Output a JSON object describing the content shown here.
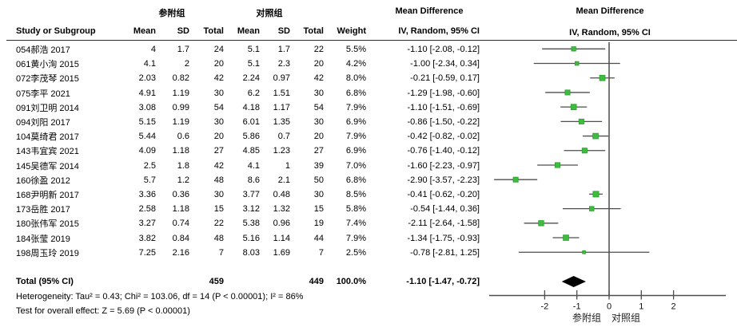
{
  "header": {
    "group1": "参附组",
    "group2": "对照组",
    "md_title_left": "Mean Difference",
    "md_title_right": "Mean Difference",
    "col_study": "Study or Subgroup",
    "col_mean1": "Mean",
    "col_sd1": "SD",
    "col_total1": "Total",
    "col_mean2": "Mean",
    "col_sd2": "SD",
    "col_total2": "Total",
    "col_weight": "Weight",
    "col_ci": "IV, Random, 95% CI",
    "col_ci_right": "IV, Random, 95% CI"
  },
  "rows": [
    {
      "study": "054郝浩 2017",
      "mean1": "4",
      "sd1": "1.7",
      "total1": "24",
      "mean2": "5.1",
      "sd2": "1.7",
      "total2": "22",
      "weight": "5.5%",
      "ci": "-1.10 [-2.08, -0.12]"
    },
    {
      "study": "061黄小洵 2015",
      "mean1": "4.1",
      "sd1": "2",
      "total1": "20",
      "mean2": "5.1",
      "sd2": "2.3",
      "total2": "20",
      "weight": "4.2%",
      "ci": "-1.00 [-2.34, 0.34]"
    },
    {
      "study": "072李茂琴 2015",
      "mean1": "2.03",
      "sd1": "0.82",
      "total1": "42",
      "mean2": "2.24",
      "sd2": "0.97",
      "total2": "42",
      "weight": "8.0%",
      "ci": "-0.21 [-0.59, 0.17]"
    },
    {
      "study": "075李平 2021",
      "mean1": "4.91",
      "sd1": "1.19",
      "total1": "30",
      "mean2": "6.2",
      "sd2": "1.51",
      "total2": "30",
      "weight": "6.8%",
      "ci": "-1.29 [-1.98, -0.60]"
    },
    {
      "study": "091刘卫明 2014",
      "mean1": "3.08",
      "sd1": "0.99",
      "total1": "54",
      "mean2": "4.18",
      "sd2": "1.17",
      "total2": "54",
      "weight": "7.9%",
      "ci": "-1.10 [-1.51, -0.69]"
    },
    {
      "study": "094刘阳 2017",
      "mean1": "5.15",
      "sd1": "1.19",
      "total1": "30",
      "mean2": "6.01",
      "sd2": "1.35",
      "total2": "30",
      "weight": "6.9%",
      "ci": "-0.86 [-1.50, -0.22]"
    },
    {
      "study": "104莫绮君 2017",
      "mean1": "5.44",
      "sd1": "0.6",
      "total1": "20",
      "mean2": "5.86",
      "sd2": "0.7",
      "total2": "20",
      "weight": "7.9%",
      "ci": "-0.42 [-0.82, -0.02]"
    },
    {
      "study": "143韦宜宾 2021",
      "mean1": "4.09",
      "sd1": "1.18",
      "total1": "27",
      "mean2": "4.85",
      "sd2": "1.23",
      "total2": "27",
      "weight": "6.9%",
      "ci": "-0.76 [-1.40, -0.12]"
    },
    {
      "study": "145吴德军 2014",
      "mean1": "2.5",
      "sd1": "1.8",
      "total1": "42",
      "mean2": "4.1",
      "sd2": "1",
      "total2": "39",
      "weight": "7.0%",
      "ci": "-1.60 [-2.23, -0.97]"
    },
    {
      "study": "160徐盈 2012",
      "mean1": "5.7",
      "sd1": "1.2",
      "total1": "48",
      "mean2": "8.6",
      "sd2": "2.1",
      "total2": "50",
      "weight": "6.8%",
      "ci": "-2.90 [-3.57, -2.23]"
    },
    {
      "study": "168尹明新 2017",
      "mean1": "3.36",
      "sd1": "0.36",
      "total1": "30",
      "mean2": "3.77",
      "sd2": "0.48",
      "total2": "30",
      "weight": "8.5%",
      "ci": "-0.41 [-0.62, -0.20]"
    },
    {
      "study": "173岳胜 2017",
      "mean1": "2.58",
      "sd1": "1.18",
      "total1": "15",
      "mean2": "3.12",
      "sd2": "1.32",
      "total2": "15",
      "weight": "5.8%",
      "ci": "-0.54 [-1.44, 0.36]"
    },
    {
      "study": "180张伟军 2015",
      "mean1": "3.27",
      "sd1": "0.74",
      "total1": "22",
      "mean2": "5.38",
      "sd2": "0.96",
      "total2": "19",
      "weight": "7.4%",
      "ci": "-2.11 [-2.64, -1.58]"
    },
    {
      "study": "184张莹 2019",
      "mean1": "3.82",
      "sd1": "0.84",
      "total1": "48",
      "mean2": "5.16",
      "sd2": "1.14",
      "total2": "44",
      "weight": "7.9%",
      "ci": "-1.34 [-1.75, -0.93]"
    },
    {
      "study": "198周玉玲 2019",
      "mean1": "7.25",
      "sd1": "2.16",
      "total1": "7",
      "mean2": "8.03",
      "sd2": "1.69",
      "total2": "7",
      "weight": "2.5%",
      "ci": "-0.78 [-2.81, 1.25]"
    }
  ],
  "footer": {
    "total_label": "Total (95% CI)",
    "total1": "459",
    "total2": "449",
    "total_weight": "100.0%",
    "total_ci": "-1.10 [-1.47, -0.72]",
    "heterogeneity": "Heterogeneity: Tau² = 0.43; Chi² = 103.06, df = 14 (P < 0.00001); I² = 86%",
    "overall_effect": "Test for overall effect: Z = 5.69 (P < 0.00001)"
  },
  "chart_data": {
    "type": "forest",
    "title": "Mean Difference",
    "subtitle": "IV, Random, 95% CI",
    "effect_measure": "Mean Difference IV, Random, 95% CI",
    "x_ticks": [
      -2,
      -1,
      0,
      1,
      2
    ],
    "xlim": [
      -3.8,
      3.7
    ],
    "zero_line": 0,
    "axis_group_labels": {
      "left": "参附组",
      "right": "对照组"
    },
    "marker_color": "#3fbb3f",
    "marker_edge_color": "#2d9e2d",
    "line_color": "#4d4d4d",
    "diamond_color": "#000000",
    "studies": [
      {
        "label": "054郝浩 2017",
        "md": -1.1,
        "lo": -2.08,
        "hi": -0.12,
        "weight_pct": 5.5
      },
      {
        "label": "061黄小洵 2015",
        "md": -1.0,
        "lo": -2.34,
        "hi": 0.34,
        "weight_pct": 4.2
      },
      {
        "label": "072李茂琴 2015",
        "md": -0.21,
        "lo": -0.59,
        "hi": 0.17,
        "weight_pct": 8.0
      },
      {
        "label": "075李平 2021",
        "md": -1.29,
        "lo": -1.98,
        "hi": -0.6,
        "weight_pct": 6.8
      },
      {
        "label": "091刘卫明 2014",
        "md": -1.1,
        "lo": -1.51,
        "hi": -0.69,
        "weight_pct": 7.9
      },
      {
        "label": "094刘阳 2017",
        "md": -0.86,
        "lo": -1.5,
        "hi": -0.22,
        "weight_pct": 6.9
      },
      {
        "label": "104莫绮君 2017",
        "md": -0.42,
        "lo": -0.82,
        "hi": -0.02,
        "weight_pct": 7.9
      },
      {
        "label": "143韦宜宾 2021",
        "md": -0.76,
        "lo": -1.4,
        "hi": -0.12,
        "weight_pct": 6.9
      },
      {
        "label": "145吴德军 2014",
        "md": -1.6,
        "lo": -2.23,
        "hi": -0.97,
        "weight_pct": 7.0
      },
      {
        "label": "160徐盈 2012",
        "md": -2.9,
        "lo": -3.57,
        "hi": -2.23,
        "weight_pct": 6.8
      },
      {
        "label": "168尹明新 2017",
        "md": -0.41,
        "lo": -0.62,
        "hi": -0.2,
        "weight_pct": 8.5
      },
      {
        "label": "173岳胜 2017",
        "md": -0.54,
        "lo": -1.44,
        "hi": 0.36,
        "weight_pct": 5.8
      },
      {
        "label": "180张伟军 2015",
        "md": -2.11,
        "lo": -2.64,
        "hi": -1.58,
        "weight_pct": 7.4
      },
      {
        "label": "184张莹 2019",
        "md": -1.34,
        "lo": -1.75,
        "hi": -0.93,
        "weight_pct": 7.9
      },
      {
        "label": "198周玉玲 2019",
        "md": -0.78,
        "lo": -2.81,
        "hi": 1.25,
        "weight_pct": 2.5
      }
    ],
    "total": {
      "label": "Total (95% CI)",
      "md": -1.1,
      "lo": -1.47,
      "hi": -0.72
    }
  }
}
